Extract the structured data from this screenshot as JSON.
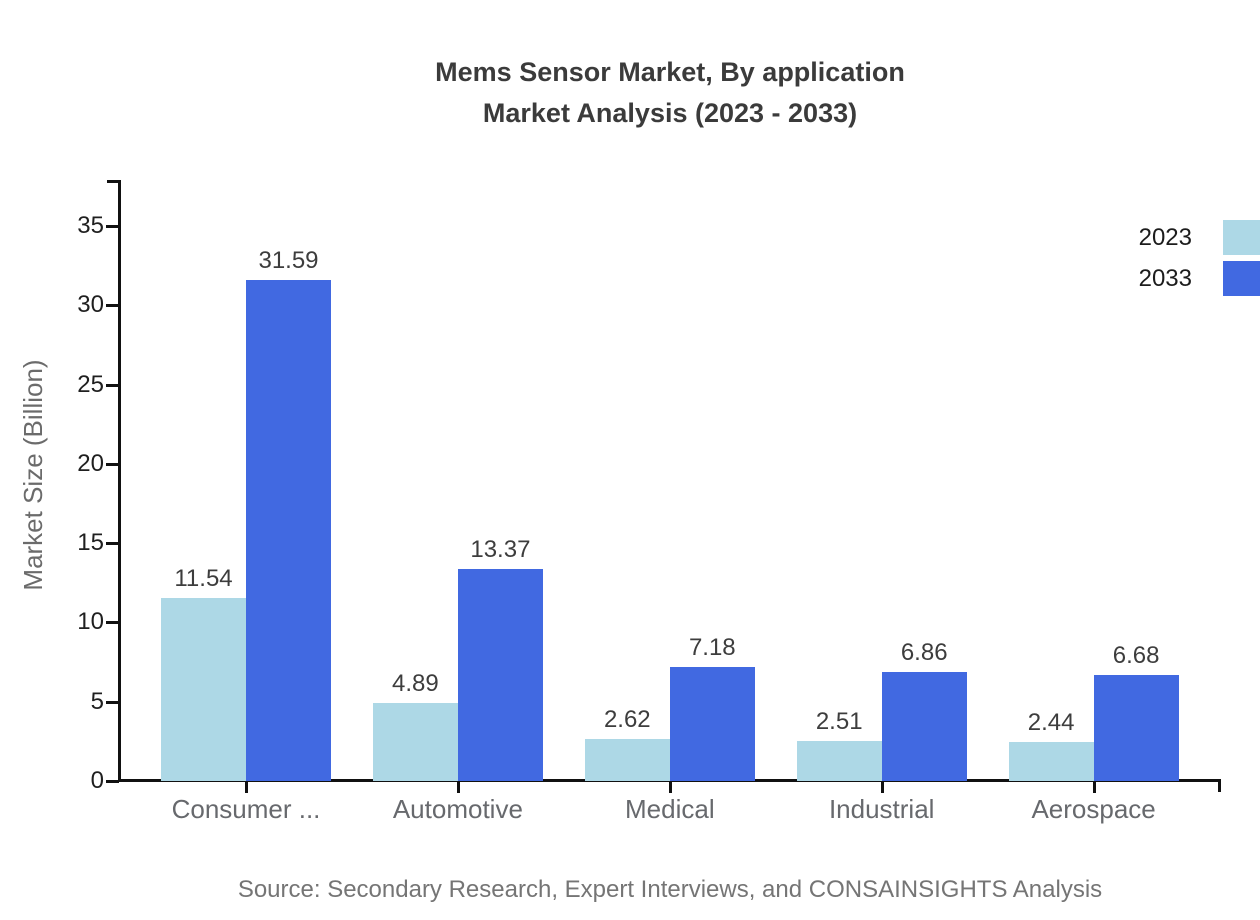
{
  "title": {
    "line1": "Mems Sensor Market, By application",
    "line2": "Market Analysis (2023 - 2033)"
  },
  "legend": [
    {
      "label": "2023",
      "color": "#ADD8E6"
    },
    {
      "label": "2033",
      "color": "#4169E1"
    }
  ],
  "chart_data": {
    "type": "bar",
    "categories": [
      "Consumer ...",
      "Automotive",
      "Medical",
      "Industrial",
      "Aerospace"
    ],
    "series": [
      {
        "name": "2023",
        "color": "#ADD8E6",
        "values": [
          11.54,
          4.89,
          2.62,
          2.51,
          2.44
        ]
      },
      {
        "name": "2033",
        "color": "#4169E1",
        "values": [
          31.59,
          13.37,
          7.18,
          6.86,
          6.68
        ]
      }
    ],
    "value_label_format": [
      "11.54",
      "4.89",
      "2.62",
      "2.51",
      "2.44",
      "31.59",
      "13.37",
      "7.18",
      "6.86",
      "6.68"
    ],
    "ylabel": "Market Size (Billion)",
    "xlabel": "",
    "yticks": [
      0,
      5,
      10,
      15,
      20,
      25,
      30,
      35
    ],
    "ylim": [
      0,
      37.9
    ],
    "grid": false,
    "legend_position": "top-right",
    "value_labels": true
  },
  "source": "Source: Secondary Research, Expert Interviews, and CONSAINSIGHTS Analysis",
  "colors": {
    "axis": "#111111",
    "title": "#3b3b3b",
    "tick_label": "#1f1f1f",
    "category_label": "#67696d",
    "value_label": "#3d3d3d",
    "ylabel": "#6b6b6b",
    "source": "#757575"
  }
}
